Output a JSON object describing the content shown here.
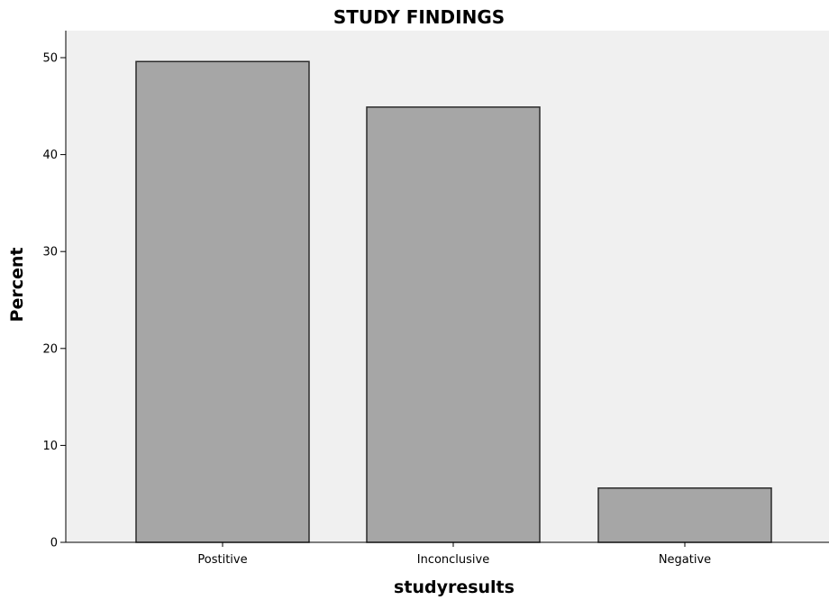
{
  "chart_data": {
    "type": "bar",
    "title": "STUDY FINDINGS",
    "xlabel": "studyresults",
    "ylabel": "Percent",
    "categories": [
      "Postitive",
      "Inconclusive",
      "Negative"
    ],
    "values": [
      49.6,
      44.9,
      5.6
    ],
    "ylim": [
      0,
      50
    ],
    "yticks": [
      "0",
      "10",
      "20",
      "30",
      "40",
      "50"
    ],
    "grid": false,
    "colors": {
      "plot_background": "#f0f0f0",
      "bar_fill": "#a6a6a6",
      "bar_stroke": "#2b2b2b"
    }
  }
}
